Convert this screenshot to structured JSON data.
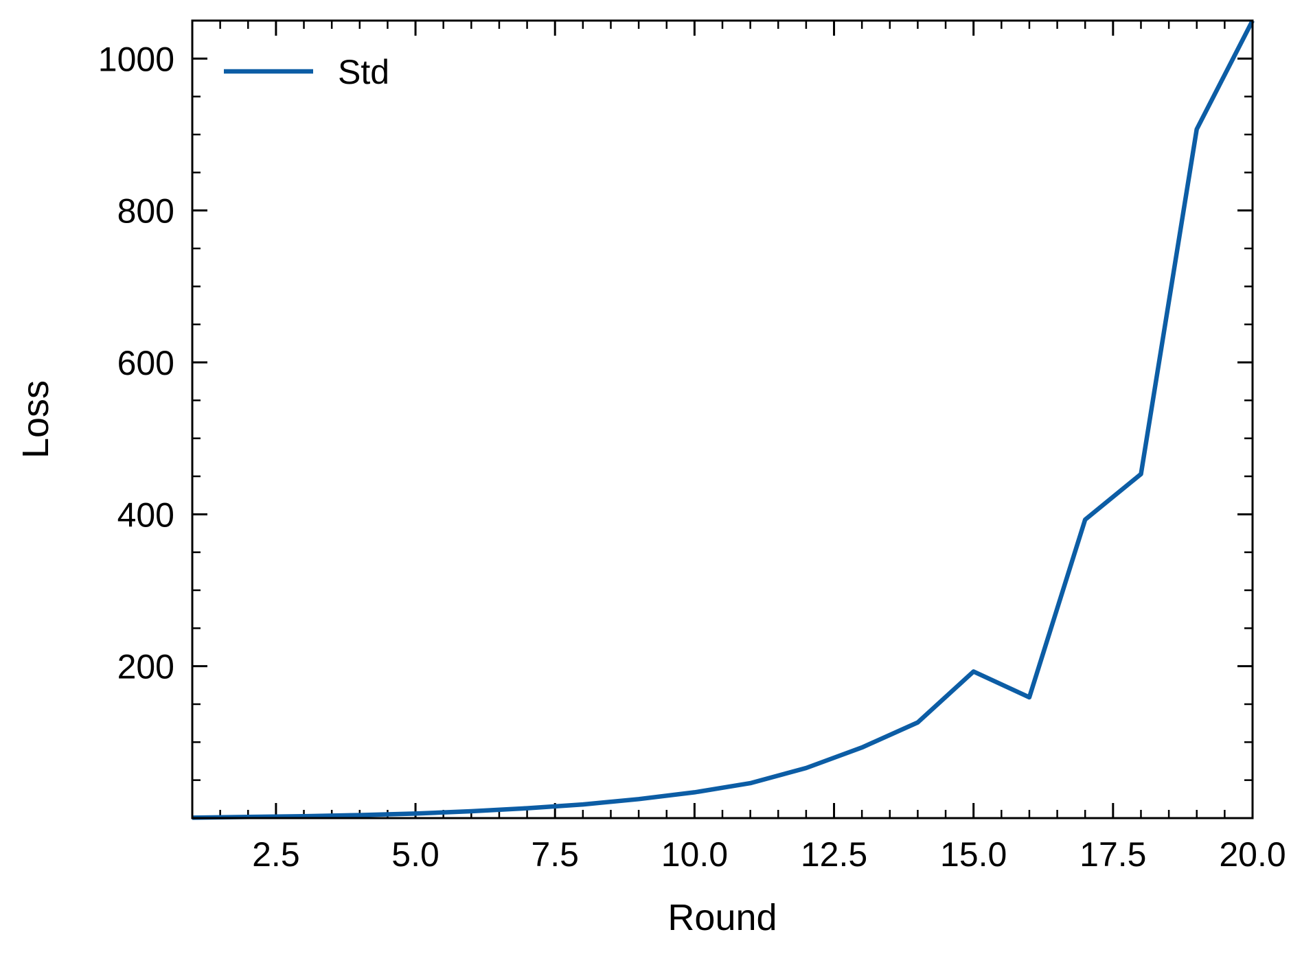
{
  "chart_data": {
    "type": "line",
    "title": "",
    "xlabel": "Round",
    "ylabel": "Loss",
    "xlim": [
      1,
      20
    ],
    "ylim": [
      0,
      1050
    ],
    "grid": false,
    "legend_position": "top-left",
    "x_ticks": [
      {
        "value": 2.5,
        "label": "2.5"
      },
      {
        "value": 5.0,
        "label": "5.0"
      },
      {
        "value": 7.5,
        "label": "7.5"
      },
      {
        "value": 10.0,
        "label": "10.0"
      },
      {
        "value": 12.5,
        "label": "12.5"
      },
      {
        "value": 15.0,
        "label": "15.0"
      },
      {
        "value": 17.5,
        "label": "17.5"
      },
      {
        "value": 20.0,
        "label": "20.0"
      }
    ],
    "y_ticks": [
      {
        "value": 200,
        "label": "200"
      },
      {
        "value": 400,
        "label": "400"
      },
      {
        "value": 600,
        "label": "600"
      },
      {
        "value": 800,
        "label": "800"
      },
      {
        "value": 1000,
        "label": "1000"
      }
    ],
    "x_minor_step": 0.5,
    "y_minor_step": 50,
    "series": [
      {
        "name": "Std",
        "color": "#0c5da5",
        "x": [
          1,
          2,
          3,
          4,
          5,
          6,
          7,
          8,
          9,
          10,
          11,
          12,
          13,
          14,
          15,
          16,
          17,
          18,
          19,
          20
        ],
        "values": [
          0.5,
          1.5,
          2.5,
          4,
          6,
          9,
          13,
          18,
          25,
          34,
          46,
          66,
          93,
          126,
          193,
          159,
          393,
          453,
          907,
          1050
        ]
      }
    ]
  }
}
